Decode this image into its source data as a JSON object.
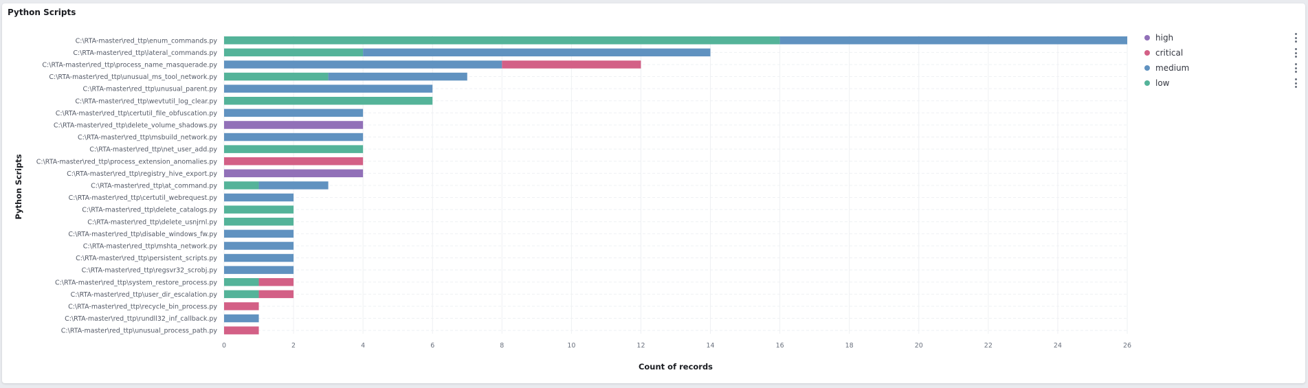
{
  "panel": {
    "title": "Python Scripts"
  },
  "chart_data": {
    "type": "bar",
    "orientation": "horizontal",
    "stacked": true,
    "title": "Python Scripts",
    "xlabel": "Count of records",
    "ylabel": "Python Scripts",
    "xlim": [
      0,
      26
    ],
    "x_ticks": [
      0,
      2,
      4,
      6,
      8,
      10,
      12,
      14,
      16,
      18,
      20,
      22,
      24,
      26
    ],
    "grid": true,
    "legend_position": "right",
    "categories": [
      "C:\\RTA-master\\red_ttp\\enum_commands.py",
      "C:\\RTA-master\\red_ttp\\lateral_commands.py",
      "C:\\RTA-master\\red_ttp\\process_name_masquerade.py",
      "C:\\RTA-master\\red_ttp\\unusual_ms_tool_network.py",
      "C:\\RTA-master\\red_ttp\\unusual_parent.py",
      "C:\\RTA-master\\red_ttp\\wevtutil_log_clear.py",
      "C:\\RTA-master\\red_ttp\\certutil_file_obfuscation.py",
      "C:\\RTA-master\\red_ttp\\delete_volume_shadows.py",
      "C:\\RTA-master\\red_ttp\\msbuild_network.py",
      "C:\\RTA-master\\red_ttp\\net_user_add.py",
      "C:\\RTA-master\\red_ttp\\process_extension_anomalies.py",
      "C:\\RTA-master\\red_ttp\\registry_hive_export.py",
      "C:\\RTA-master\\red_ttp\\at_command.py",
      "C:\\RTA-master\\red_ttp\\certutil_webrequest.py",
      "C:\\RTA-master\\red_ttp\\delete_catalogs.py",
      "C:\\RTA-master\\red_ttp\\delete_usnjrnl.py",
      "C:\\RTA-master\\red_ttp\\disable_windows_fw.py",
      "C:\\RTA-master\\red_ttp\\mshta_network.py",
      "C:\\RTA-master\\red_ttp\\persistent_scripts.py",
      "C:\\RTA-master\\red_ttp\\regsvr32_scrobj.py",
      "C:\\RTA-master\\red_ttp\\system_restore_process.py",
      "C:\\RTA-master\\red_ttp\\user_dir_escalation.py",
      "C:\\RTA-master\\red_ttp\\recycle_bin_process.py",
      "C:\\RTA-master\\red_ttp\\rundll32_inf_callback.py",
      "C:\\RTA-master\\red_ttp\\unusual_process_path.py"
    ],
    "stack_order": [
      "low",
      "medium",
      "critical",
      "high"
    ],
    "series": [
      {
        "name": "high",
        "color": "#9170b8",
        "values": [
          0,
          0,
          0,
          0,
          0,
          0,
          0,
          4,
          0,
          0,
          0,
          4,
          0,
          0,
          0,
          0,
          0,
          0,
          0,
          0,
          0,
          0,
          0,
          0,
          0
        ]
      },
      {
        "name": "critical",
        "color": "#d36086",
        "values": [
          0,
          0,
          4,
          0,
          0,
          0,
          0,
          0,
          0,
          0,
          4,
          0,
          0,
          0,
          0,
          0,
          0,
          0,
          0,
          0,
          1,
          1,
          1,
          0,
          1
        ]
      },
      {
        "name": "medium",
        "color": "#6092c0",
        "values": [
          10,
          10,
          8,
          4,
          6,
          0,
          4,
          0,
          4,
          0,
          0,
          0,
          2,
          2,
          0,
          0,
          2,
          2,
          2,
          2,
          0,
          0,
          0,
          1,
          0
        ]
      },
      {
        "name": "low",
        "color": "#54b399",
        "values": [
          16,
          4,
          0,
          3,
          0,
          6,
          0,
          0,
          0,
          4,
          0,
          0,
          1,
          0,
          2,
          2,
          0,
          0,
          0,
          0,
          1,
          1,
          0,
          0,
          0
        ]
      }
    ]
  },
  "legend": {
    "items": [
      {
        "label": "high",
        "color": "#9170b8"
      },
      {
        "label": "critical",
        "color": "#d36086"
      },
      {
        "label": "medium",
        "color": "#6092c0"
      },
      {
        "label": "low",
        "color": "#54b399"
      }
    ]
  }
}
